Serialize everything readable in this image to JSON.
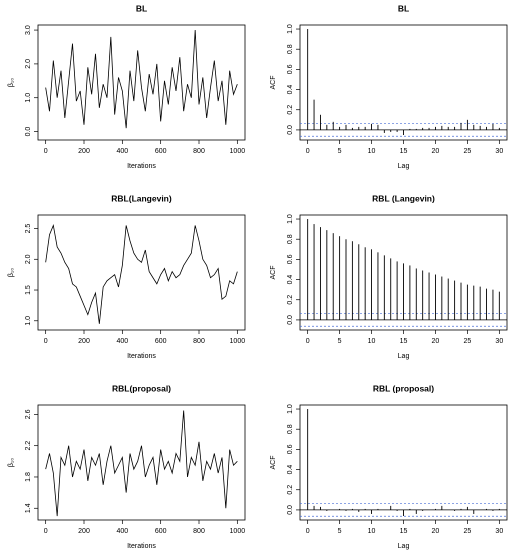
{
  "chart_data": [
    {
      "type": "line",
      "title": "BL",
      "xlabel": "Iterations",
      "ylabel": "β₁₀",
      "color": "#000000",
      "x": [
        0,
        20,
        40,
        60,
        80,
        100,
        120,
        140,
        160,
        180,
        200,
        220,
        240,
        260,
        280,
        300,
        320,
        340,
        360,
        380,
        400,
        420,
        440,
        460,
        480,
        500,
        520,
        540,
        560,
        580,
        600,
        620,
        640,
        660,
        680,
        700,
        720,
        740,
        760,
        780,
        800,
        820,
        840,
        860,
        880,
        900,
        920,
        940,
        960,
        980,
        1000
      ],
      "values": [
        1.3,
        0.6,
        2.1,
        1.0,
        1.8,
        0.4,
        1.5,
        2.6,
        0.9,
        1.2,
        0.2,
        1.9,
        1.1,
        2.3,
        0.7,
        1.4,
        1.0,
        2.8,
        0.5,
        1.6,
        1.2,
        0.1,
        1.8,
        0.9,
        2.4,
        1.3,
        0.6,
        1.7,
        1.1,
        2.0,
        0.3,
        1.5,
        0.8,
        1.9,
        1.2,
        2.2,
        0.6,
        1.4,
        1.0,
        3.0,
        0.8,
        1.6,
        0.4,
        1.3,
        2.1,
        0.9,
        1.5,
        0.2,
        1.8,
        1.1,
        1.4
      ],
      "xlim": [
        -40,
        1040
      ],
      "xticks": [
        0,
        200,
        400,
        600,
        800,
        1000
      ],
      "ylim": [
        -0.25,
        3.15
      ],
      "yticks": [
        {
          "value": 0,
          "label": "0.0"
        },
        {
          "value": 1,
          "label": "1.0"
        },
        {
          "value": 2,
          "label": "2.0"
        },
        {
          "value": 3,
          "label": "3.0"
        }
      ]
    },
    {
      "type": "stem",
      "title": "BL",
      "xlabel": "Lag",
      "ylabel": "ACF",
      "color": "#000000",
      "ci_color": "#4a6fd6",
      "ci_lines": [
        -0.063,
        0.063
      ],
      "x": [
        0,
        1,
        2,
        3,
        4,
        5,
        6,
        7,
        8,
        9,
        10,
        11,
        12,
        13,
        14,
        15,
        16,
        17,
        18,
        19,
        20,
        21,
        22,
        23,
        24,
        25,
        26,
        27,
        28,
        29,
        30
      ],
      "values": [
        1,
        0.3,
        0.15,
        0.05,
        0.08,
        0.03,
        0.05,
        0.02,
        0.03,
        0.03,
        0.06,
        0.05,
        -0.03,
        -0.02,
        -0.02,
        -0.05,
        0.01,
        0.01,
        0.02,
        0.02,
        0.03,
        0.04,
        0.03,
        0.03,
        0.07,
        0.1,
        0.05,
        0.04,
        0.03,
        0.06,
        0.02
      ],
      "xlim": [
        -1.2,
        31.2
      ],
      "xticks": [
        0,
        5,
        10,
        15,
        20,
        25,
        30
      ],
      "ylim": [
        -0.1,
        1.04
      ],
      "yticks": [
        {
          "value": 0,
          "label": "0.0"
        },
        0.2,
        0.4,
        0.6,
        0.8,
        {
          "value": 1,
          "label": "1.0"
        }
      ]
    },
    {
      "type": "line",
      "title": "RBL(Langevin)",
      "xlabel": "Iterations",
      "ylabel": "β₁₀",
      "color": "#000000",
      "x": [
        0,
        20,
        40,
        60,
        80,
        100,
        120,
        140,
        160,
        180,
        200,
        220,
        240,
        260,
        280,
        300,
        320,
        340,
        360,
        380,
        400,
        420,
        440,
        460,
        480,
        500,
        520,
        540,
        560,
        580,
        600,
        620,
        640,
        660,
        680,
        700,
        720,
        740,
        760,
        780,
        800,
        820,
        840,
        860,
        880,
        900,
        920,
        940,
        960,
        980,
        1000
      ],
      "values": [
        1.95,
        2.4,
        2.55,
        2.2,
        2.1,
        1.95,
        1.85,
        1.6,
        1.55,
        1.4,
        1.25,
        1.1,
        1.3,
        1.45,
        0.95,
        1.55,
        1.65,
        1.7,
        1.75,
        1.55,
        1.9,
        2.55,
        2.3,
        2.1,
        2.0,
        1.95,
        2.15,
        1.8,
        1.7,
        1.6,
        1.75,
        1.85,
        1.65,
        1.8,
        1.7,
        1.75,
        1.9,
        2.0,
        2.1,
        2.55,
        2.3,
        2.0,
        1.9,
        1.7,
        1.75,
        1.85,
        1.35,
        1.4,
        1.65,
        1.6,
        1.8
      ],
      "xlim": [
        -40,
        1040
      ],
      "xticks": [
        0,
        200,
        400,
        600,
        800,
        1000
      ],
      "ylim": [
        0.85,
        2.72
      ],
      "yticks": [
        {
          "value": 1,
          "label": "1.0"
        },
        1.5,
        {
          "value": 2,
          "label": "2.0"
        },
        2.5
      ]
    },
    {
      "type": "stem",
      "title": "RBL (Langevin)",
      "xlabel": "Lag",
      "ylabel": "ACF",
      "color": "#000000",
      "ci_color": "#4a6fd6",
      "ci_lines": [
        -0.063,
        0.063
      ],
      "x": [
        0,
        1,
        2,
        3,
        4,
        5,
        6,
        7,
        8,
        9,
        10,
        11,
        12,
        13,
        14,
        15,
        16,
        17,
        18,
        19,
        20,
        21,
        22,
        23,
        24,
        25,
        26,
        27,
        28,
        29,
        30
      ],
      "values": [
        1,
        0.95,
        0.92,
        0.89,
        0.86,
        0.83,
        0.8,
        0.78,
        0.75,
        0.72,
        0.7,
        0.67,
        0.64,
        0.61,
        0.58,
        0.56,
        0.54,
        0.51,
        0.49,
        0.47,
        0.45,
        0.43,
        0.41,
        0.39,
        0.37,
        0.35,
        0.34,
        0.33,
        0.31,
        0.3,
        0.28
      ],
      "xlim": [
        -1.2,
        31.2
      ],
      "xticks": [
        0,
        5,
        10,
        15,
        20,
        25,
        30
      ],
      "ylim": [
        -0.1,
        1.04
      ],
      "yticks": [
        {
          "value": 0,
          "label": "0.0"
        },
        0.2,
        0.4,
        0.6,
        0.8,
        {
          "value": 1,
          "label": "1.0"
        }
      ]
    },
    {
      "type": "line",
      "title": "RBL(proposal)",
      "xlabel": "Iterations",
      "ylabel": "β₁₀",
      "color": "#000000",
      "x": [
        0,
        20,
        40,
        60,
        80,
        100,
        120,
        140,
        160,
        180,
        200,
        220,
        240,
        260,
        280,
        300,
        320,
        340,
        360,
        380,
        400,
        420,
        440,
        460,
        480,
        500,
        520,
        540,
        560,
        580,
        600,
        620,
        640,
        660,
        680,
        700,
        720,
        740,
        760,
        780,
        800,
        820,
        840,
        860,
        880,
        900,
        920,
        940,
        960,
        980,
        1000
      ],
      "values": [
        1.9,
        2.1,
        1.85,
        1.3,
        2.05,
        1.95,
        2.2,
        1.8,
        2.0,
        1.9,
        2.15,
        1.75,
        2.05,
        1.95,
        2.1,
        1.7,
        2.0,
        2.2,
        1.85,
        1.95,
        2.05,
        1.6,
        2.1,
        1.9,
        2.0,
        2.2,
        1.8,
        1.95,
        2.05,
        1.7,
        2.15,
        1.9,
        2.0,
        1.85,
        2.1,
        2.0,
        2.65,
        1.8,
        2.05,
        1.95,
        2.25,
        1.75,
        2.0,
        1.9,
        2.1,
        1.85,
        2.05,
        1.4,
        2.15,
        1.95,
        2.0
      ],
      "xlim": [
        -40,
        1040
      ],
      "xticks": [
        0,
        200,
        400,
        600,
        800,
        1000
      ],
      "ylim": [
        1.25,
        2.72
      ],
      "yticks": [
        1.4,
        1.8,
        2.2,
        2.6
      ]
    },
    {
      "type": "stem",
      "title": "RBL (proposal)",
      "xlabel": "Lag",
      "ylabel": "ACF",
      "color": "#000000",
      "ci_color": "#4a6fd6",
      "ci_lines": [
        -0.063,
        0.063
      ],
      "x": [
        0,
        1,
        2,
        3,
        4,
        5,
        6,
        7,
        8,
        9,
        10,
        11,
        12,
        13,
        14,
        15,
        16,
        17,
        18,
        19,
        20,
        21,
        22,
        23,
        24,
        25,
        26,
        27,
        28,
        29,
        30
      ],
      "values": [
        1,
        0.04,
        0.03,
        -0.01,
        0.0,
        0.01,
        -0.01,
        0.01,
        -0.02,
        0.01,
        -0.04,
        0.01,
        0.0,
        0.04,
        -0.01,
        -0.06,
        0.01,
        -0.04,
        -0.01,
        0.0,
        0.01,
        0.04,
        0.0,
        -0.01,
        0.01,
        0.03,
        -0.04,
        0.0,
        0.01,
        -0.01,
        0.01
      ],
      "xlim": [
        -1.2,
        31.2
      ],
      "xticks": [
        0,
        5,
        10,
        15,
        20,
        25,
        30
      ],
      "ylim": [
        -0.1,
        1.04
      ],
      "yticks": [
        {
          "value": 0,
          "label": "0.0"
        },
        0.2,
        0.4,
        0.6,
        0.8,
        {
          "value": 1,
          "label": "1.0"
        }
      ]
    }
  ]
}
